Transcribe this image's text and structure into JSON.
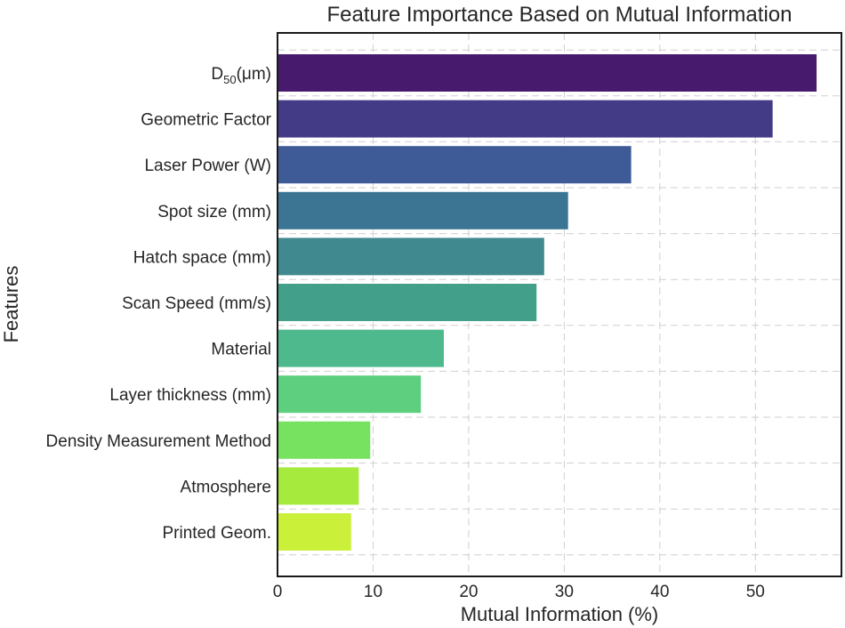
{
  "chart_data": {
    "type": "bar",
    "orientation": "horizontal",
    "title": "Feature Importance Based on Mutual Information",
    "xlabel": "Mutual Information (%)",
    "ylabel": "Features",
    "xlim": [
      0,
      59
    ],
    "xticks": [
      0,
      10,
      20,
      30,
      40,
      50
    ],
    "grid": true,
    "categories": [
      "D50(μm)",
      "Geometric Factor",
      "Laser Power (W)",
      "Spot size (mm)",
      "Hatch space (mm)",
      "Scan Speed (mm/s)",
      "Material",
      "Layer thickness (mm)",
      "Density Measurement Method",
      "Atmosphere",
      "Printed Geom."
    ],
    "values": [
      56.4,
      51.8,
      37.0,
      30.4,
      27.9,
      27.1,
      17.4,
      15.0,
      9.7,
      8.5,
      7.7
    ],
    "colors": [
      "#471a6e",
      "#433b86",
      "#3e5b97",
      "#3b7593",
      "#3f898f",
      "#42a08a",
      "#4fb98e",
      "#5dcf7f",
      "#77e260",
      "#a5ea3d",
      "#cbf03a"
    ]
  }
}
